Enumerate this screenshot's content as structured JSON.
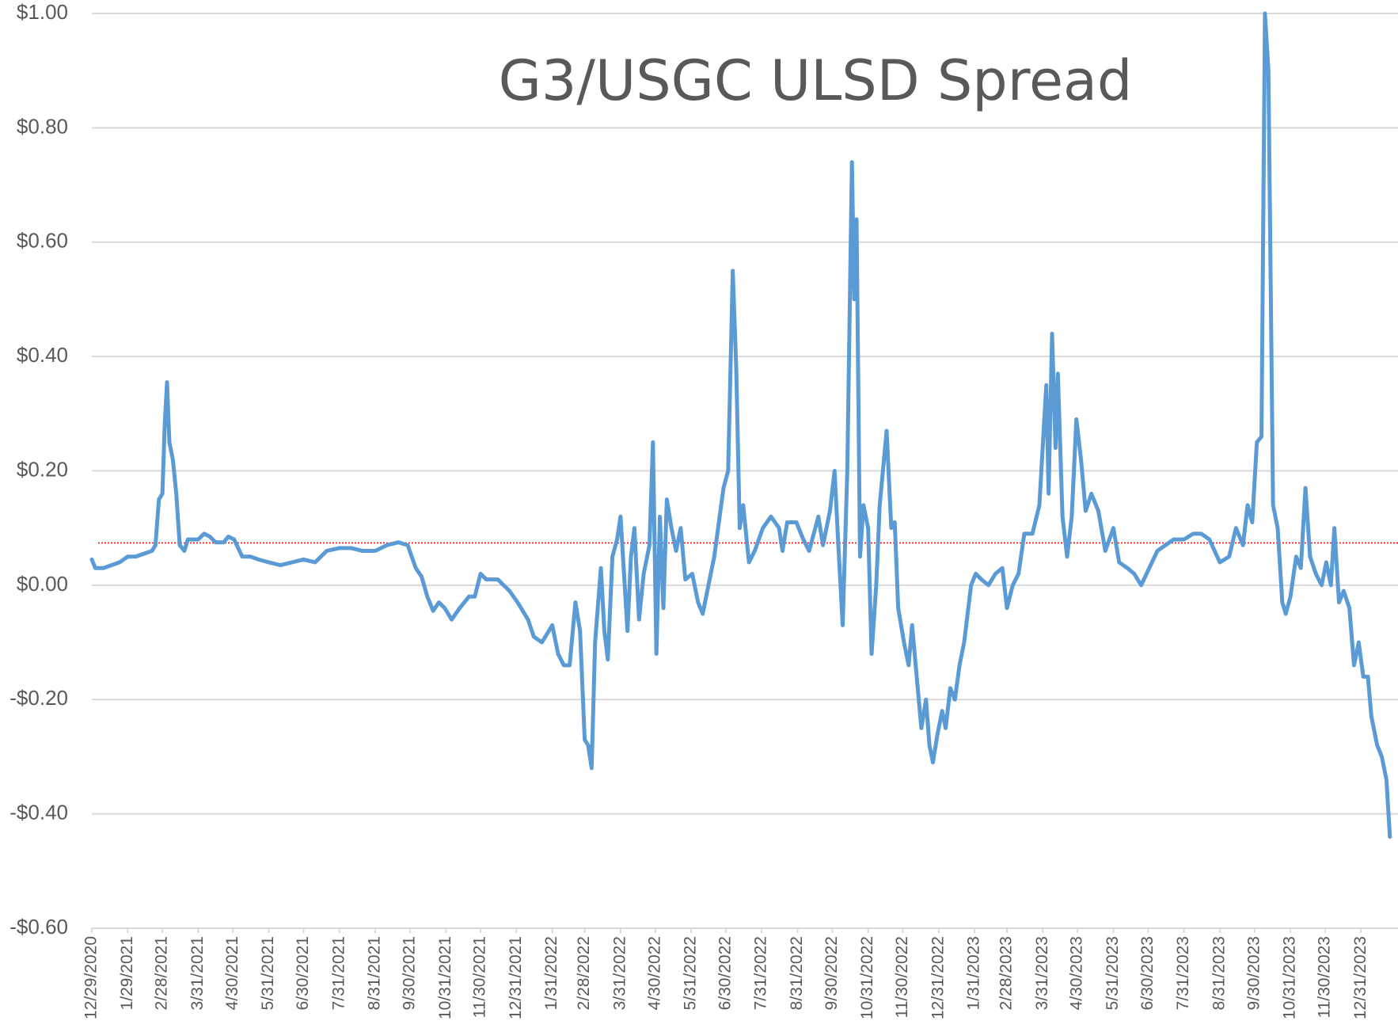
{
  "chart_data": {
    "type": "line",
    "title": "G3/USGC ULSD Spread",
    "color": "#5b9bd5",
    "grid": true,
    "x": [
      "12/29/2020",
      "1/1/2021",
      "1/8/2021",
      "1/15/2021",
      "1/22/2021",
      "1/29/2021",
      "2/5/2021",
      "2/12/2021",
      "2/19/2021",
      "2/22/2021",
      "2/25/2021",
      "2/28/2021",
      "3/2/2021",
      "3/4/2021",
      "3/6/2021",
      "3/9/2021",
      "3/12/2021",
      "3/15/2021",
      "3/19/2021",
      "3/22/2021",
      "3/31/2021",
      "4/5/2021",
      "4/10/2021",
      "4/15/2021",
      "4/22/2021",
      "4/26/2021",
      "5/1/2021",
      "5/8/2021",
      "5/15/2021",
      "5/22/2021",
      "5/31/2021",
      "6/10/2021",
      "6/20/2021",
      "6/30/2021",
      "7/10/2021",
      "7/20/2021",
      "7/31/2021",
      "8/10/2021",
      "8/20/2021",
      "8/31/2021",
      "9/10/2021",
      "9/20/2021",
      "9/28/2021",
      "10/5/2021",
      "10/10/2021",
      "10/15/2021",
      "10/20/2021",
      "10/25/2021",
      "10/30/2021",
      "11/5/2021",
      "11/12/2021",
      "11/20/2021",
      "11/25/2021",
      "11/30/2021",
      "12/5/2021",
      "12/15/2021",
      "12/25/2021",
      "1/1/2022",
      "1/10/2022",
      "1/15/2022",
      "1/22/2022",
      "1/31/2022",
      "2/5/2022",
      "2/10/2022",
      "2/15/2022",
      "2/20/2022",
      "2/24/2022",
      "2/28/2022",
      "3/3/2022",
      "3/6/2022",
      "3/9/2022",
      "3/14/2022",
      "3/17/2022",
      "3/20/2022",
      "3/24/2022",
      "3/28/2022",
      "3/31/2022",
      "4/3/2022",
      "4/6/2022",
      "4/9/2022",
      "4/12/2022",
      "4/16/2022",
      "4/20/2022",
      "4/25/2022",
      "4/28/2022",
      "5/1/2022",
      "5/4/2022",
      "5/7/2022",
      "5/10/2022",
      "5/14/2022",
      "5/18/2022",
      "5/22/2022",
      "5/26/2022",
      "6/1/2022",
      "6/6/2022",
      "6/10/2022",
      "6/15/2022",
      "6/20/2022",
      "6/28/2022",
      "7/2/2022",
      "7/6/2022",
      "7/9/2022",
      "7/12/2022",
      "7/15/2022",
      "7/20/2022",
      "7/25/2022",
      "8/1/2022",
      "8/8/2022",
      "8/15/2022",
      "8/18/2022",
      "8/22/2022",
      "8/30/2022",
      "9/5/2022",
      "9/10/2022",
      "9/18/2022",
      "9/22/2022",
      "9/28/2022",
      "10/2/2022",
      "10/5/2022",
      "10/9/2022",
      "10/13/2022",
      "10/17/2022",
      "10/19/2022",
      "10/21/2022",
      "10/24/2022",
      "10/27/2022",
      "10/31/2022",
      "11/3/2022",
      "11/7/2022",
      "11/10/2022",
      "11/16/2022",
      "11/20/2022",
      "11/23/2022",
      "11/26/2022",
      "12/1/2022",
      "12/5/2022",
      "12/8/2022",
      "12/12/2022",
      "12/16/2022",
      "12/20/2022",
      "12/23/2022",
      "12/26/2022",
      "12/30/2022",
      "1/3/2023",
      "1/6/2023",
      "1/10/2023",
      "1/14/2023",
      "1/18/2023",
      "1/22/2023",
      "1/28/2023",
      "2/1/2023",
      "2/6/2023",
      "2/12/2023",
      "2/18/2023",
      "2/24/2023",
      "2/28/2023",
      "3/5/2023",
      "3/10/2023",
      "3/15/2023",
      "3/22/2023",
      "3/28/2023",
      "4/3/2023",
      "4/5/2023",
      "4/8/2023",
      "4/11/2023",
      "4/13/2023",
      "4/17/2023",
      "4/21/2023",
      "4/25/2023",
      "4/29/2023",
      "5/3/2023",
      "5/7/2023",
      "5/12/2023",
      "5/18/2023",
      "5/24/2023",
      "5/31/2023",
      "6/5/2023",
      "6/12/2023",
      "6/18/2023",
      "6/24/2023",
      "7/1/2023",
      "7/8/2023",
      "7/15/2023",
      "7/22/2023",
      "7/31/2023",
      "8/8/2023",
      "8/15/2023",
      "8/22/2023",
      "8/31/2023",
      "9/8/2023",
      "9/14/2023",
      "9/20/2023",
      "9/24/2023",
      "9/28/2023",
      "10/2/2023",
      "10/6/2023",
      "10/9/2023",
      "10/12/2023",
      "10/16/2023",
      "10/20/2023",
      "10/24/2023",
      "10/27/2023",
      "10/31/2023",
      "11/5/2023",
      "11/9/2023",
      "11/13/2023",
      "11/17/2023",
      "11/22/2023",
      "11/27/2023",
      "12/1/2023",
      "12/5/2023",
      "12/8/2023",
      "12/12/2023",
      "12/16/2023",
      "12/21/2023",
      "12/25/2023",
      "12/29/2023",
      "1/2/2024",
      "1/6/2024",
      "1/9/2024",
      "1/14/2024",
      "1/18/2024",
      "1/22/2024",
      "1/25/2024"
    ],
    "values": [
      0.045,
      0.03,
      0.03,
      0.035,
      0.04,
      0.05,
      0.05,
      0.055,
      0.06,
      0.07,
      0.15,
      0.16,
      0.28,
      0.355,
      0.25,
      0.22,
      0.16,
      0.07,
      0.06,
      0.08,
      0.08,
      0.09,
      0.085,
      0.075,
      0.075,
      0.085,
      0.08,
      0.05,
      0.05,
      0.045,
      0.04,
      0.035,
      0.04,
      0.045,
      0.04,
      0.06,
      0.065,
      0.065,
      0.06,
      0.06,
      0.07,
      0.075,
      0.07,
      0.03,
      0.015,
      -0.02,
      -0.045,
      -0.03,
      -0.04,
      -0.06,
      -0.04,
      -0.02,
      -0.02,
      0.02,
      0.01,
      0.01,
      -0.01,
      -0.03,
      -0.06,
      -0.09,
      -0.1,
      -0.07,
      -0.12,
      -0.14,
      -0.14,
      -0.03,
      -0.08,
      -0.27,
      -0.28,
      -0.32,
      -0.1,
      0.03,
      -0.08,
      -0.13,
      0.05,
      0.08,
      0.12,
      0.02,
      -0.08,
      0.05,
      0.1,
      -0.06,
      0.02,
      0.07,
      0.25,
      -0.12,
      0.12,
      -0.04,
      0.15,
      0.1,
      0.06,
      0.1,
      0.01,
      0.02,
      -0.03,
      -0.05,
      0,
      0.05,
      0.17,
      0.2,
      0.55,
      0.38,
      0.1,
      0.14,
      0.04,
      0.06,
      0.1,
      0.12,
      0.1,
      0.06,
      0.11,
      0.11,
      0.08,
      0.06,
      0.12,
      0.07,
      0.13,
      0.2,
      0.08,
      -0.07,
      0.2,
      0.74,
      0.5,
      0.64,
      0.05,
      0.14,
      0.1,
      -0.12,
      0,
      0.14,
      0.27,
      0.1,
      0.11,
      -0.04,
      -0.1,
      -0.14,
      -0.07,
      -0.16,
      -0.25,
      -0.2,
      -0.28,
      -0.31,
      -0.26,
      -0.22,
      -0.25,
      -0.18,
      -0.2,
      -0.14,
      -0.1,
      0,
      0.02,
      0.01,
      0,
      0.02,
      0.03,
      -0.04,
      0,
      0.02,
      0.09,
      0.09,
      0.14,
      0.35,
      0.16,
      0.44,
      0.24,
      0.37,
      0.12,
      0.05,
      0.12,
      0.29,
      0.22,
      0.13,
      0.16,
      0.13,
      0.06,
      0.1,
      0.04,
      0.03,
      0.02,
      0,
      0.03,
      0.06,
      0.07,
      0.08,
      0.08,
      0.09,
      0.09,
      0.08,
      0.04,
      0.05,
      0.1,
      0.07,
      0.14,
      0.11,
      0.25,
      0.26,
      1,
      0.9,
      0.14,
      0.1,
      -0.03,
      -0.05,
      -0.02,
      0.05,
      0.03,
      0.17,
      0.05,
      0.02,
      0,
      0.04,
      0,
      0.1,
      -0.03,
      -0.01,
      -0.04,
      -0.14,
      -0.1,
      -0.16,
      -0.16,
      -0.23,
      -0.28,
      -0.3,
      -0.34,
      -0.44
    ],
    "reference_line": {
      "value": 0.074,
      "color": "#ff0000"
    },
    "xlim": [
      "12/29/2020",
      "2/1/2024"
    ],
    "xticks": [
      "12/29/2020",
      "1/29/2021",
      "2/28/2021",
      "3/31/2021",
      "4/30/2021",
      "5/31/2021",
      "6/30/2021",
      "7/31/2021",
      "8/31/2021",
      "9/30/2021",
      "10/31/2021",
      "11/30/2021",
      "12/31/2021",
      "1/31/2022",
      "2/28/2022",
      "3/31/2022",
      "4/30/2022",
      "5/31/2022",
      "6/30/2022",
      "7/31/2022",
      "8/31/2022",
      "9/30/2022",
      "10/31/2022",
      "11/30/2022",
      "12/31/2022",
      "1/31/2023",
      "2/28/2023",
      "3/31/2023",
      "4/30/2023",
      "5/31/2023",
      "6/30/2023",
      "7/31/2023",
      "8/31/2023",
      "9/30/2023",
      "10/31/2023",
      "11/30/2023",
      "12/31/2023"
    ],
    "ylim": [
      -0.6,
      1
    ],
    "yticks": [
      {
        "value": 1,
        "label": "$1.00"
      },
      {
        "value": 0.8,
        "label": "$0.80"
      },
      {
        "value": 0.6,
        "label": "$0.60"
      },
      {
        "value": 0.4,
        "label": "$0.40"
      },
      {
        "value": 0.2,
        "label": "$0.20"
      },
      {
        "value": 0,
        "label": "$0.00"
      },
      {
        "value": -0.2,
        "label": "-$0.20"
      },
      {
        "value": -0.4,
        "label": "-$0.40"
      },
      {
        "value": -0.6,
        "label": "-$0.60"
      }
    ]
  }
}
